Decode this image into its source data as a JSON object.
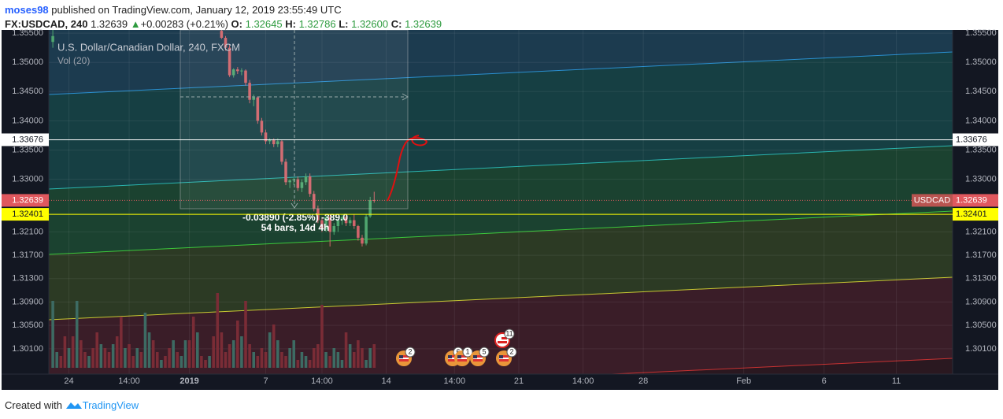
{
  "header": {
    "author": "moses98",
    "published": "published on TradingView.com, January 12, 2019 23:55:49 UTC",
    "symbol": "FX:USDCAD, 240",
    "last": "1.32639",
    "arrow": "▲",
    "change": "+0.00283 (+0.21%)",
    "o_label": "O:",
    "o": "1.32645",
    "h_label": "H:",
    "h": "1.32786",
    "l_label": "L:",
    "l": "1.32600",
    "c_label": "C:",
    "c": "1.32639"
  },
  "chart_data": {
    "type": "candlestick",
    "title": "U.S. Dollar/Canadian Dollar, 240, FXCM",
    "subtitle": "Vol (20)",
    "x": [
      1,
      2,
      3,
      4,
      5,
      6,
      7,
      8,
      9,
      10,
      11,
      12,
      13,
      14,
      15,
      16,
      17,
      18,
      19,
      20,
      21,
      22,
      23,
      24,
      25,
      26,
      27,
      28,
      29,
      30,
      31,
      32,
      33,
      34,
      35,
      36,
      37,
      38,
      39,
      40,
      41,
      42,
      43,
      44,
      45,
      46,
      47,
      48,
      49,
      50,
      51,
      52,
      53,
      54,
      55,
      56,
      57,
      58,
      59,
      60,
      61,
      62,
      63,
      64,
      65,
      66,
      67,
      68,
      69,
      70,
      71,
      72,
      73,
      74,
      75,
      76,
      77,
      78,
      79,
      80,
      81
    ],
    "open": [
      1.3535,
      null,
      null,
      null,
      null,
      null,
      null,
      null,
      null,
      null,
      null,
      null,
      null,
      null,
      null,
      null,
      null,
      null,
      null,
      null,
      null,
      null,
      null,
      null,
      null,
      null,
      null,
      null,
      null,
      null,
      null,
      null,
      null,
      null,
      null,
      null,
      null,
      null,
      null,
      null,
      null,
      null,
      1.3554,
      1.3542,
      1.3525,
      1.3478,
      1.3488,
      1.3485,
      1.3486,
      1.3465,
      1.3436,
      1.344,
      1.34,
      1.338,
      1.3365,
      1.3368,
      1.336,
      1.3365,
      1.333,
      1.3295,
      1.3298,
      1.33,
      1.3285,
      1.3295,
      1.3305,
      1.3275,
      1.325,
      1.323,
      1.3215,
      1.3235,
      1.321,
      1.322,
      1.323,
      1.3235,
      1.3225,
      1.323,
      1.322,
      1.32,
      1.319,
      1.32365,
      1.32645
    ],
    "high": [
      1.3556,
      null,
      null,
      null,
      null,
      null,
      null,
      null,
      null,
      null,
      null,
      null,
      null,
      null,
      null,
      null,
      null,
      null,
      null,
      null,
      null,
      null,
      null,
      null,
      null,
      null,
      null,
      null,
      null,
      null,
      null,
      null,
      null,
      null,
      null,
      null,
      null,
      null,
      null,
      null,
      null,
      null,
      1.3556,
      1.3545,
      1.353,
      1.349,
      1.3492,
      1.349,
      1.3488,
      1.347,
      1.3445,
      1.3442,
      1.3405,
      1.3385,
      1.337,
      1.337,
      1.337,
      1.3368,
      1.3335,
      1.33,
      1.3302,
      1.3305,
      1.33,
      1.331,
      1.331,
      1.328,
      1.3255,
      1.3235,
      1.324,
      1.324,
      1.3225,
      1.3232,
      1.324,
      1.3238,
      1.3235,
      1.324,
      1.3222,
      1.3205,
      1.324,
      1.327,
      1.32786
    ],
    "low": [
      1.3525,
      null,
      null,
      null,
      null,
      null,
      null,
      null,
      null,
      null,
      null,
      null,
      null,
      null,
      null,
      null,
      null,
      null,
      null,
      null,
      null,
      null,
      null,
      null,
      null,
      null,
      null,
      null,
      null,
      null,
      null,
      null,
      null,
      null,
      null,
      null,
      null,
      null,
      null,
      null,
      null,
      null,
      1.354,
      1.352,
      1.3475,
      1.3474,
      1.348,
      1.3478,
      1.346,
      1.343,
      1.3425,
      1.3395,
      1.3375,
      1.336,
      1.336,
      1.3355,
      1.3355,
      1.3325,
      1.329,
      1.3285,
      1.329,
      1.328,
      1.3278,
      1.329,
      1.327,
      1.3245,
      1.3225,
      1.321,
      1.321,
      1.3185,
      1.3205,
      1.321,
      1.3222,
      1.322,
      1.322,
      1.3215,
      1.3195,
      1.3185,
      1.3187,
      1.3234,
      1.326
    ],
    "close": [
      1.3545,
      null,
      null,
      null,
      null,
      null,
      null,
      null,
      null,
      null,
      null,
      null,
      null,
      null,
      null,
      null,
      null,
      null,
      null,
      null,
      null,
      null,
      null,
      null,
      null,
      null,
      null,
      null,
      null,
      null,
      null,
      null,
      null,
      null,
      null,
      null,
      null,
      null,
      null,
      null,
      null,
      null,
      1.3542,
      1.3525,
      1.3478,
      1.3488,
      1.3485,
      1.3486,
      1.3465,
      1.3436,
      1.344,
      1.34,
      1.338,
      1.3365,
      1.3368,
      1.336,
      1.3365,
      1.333,
      1.3295,
      1.3298,
      1.33,
      1.3285,
      1.3295,
      1.3305,
      1.3275,
      1.325,
      1.323,
      1.3215,
      1.3235,
      1.321,
      1.322,
      1.323,
      1.3235,
      1.3225,
      1.323,
      1.322,
      1.32,
      1.319,
      1.3236,
      1.32645,
      1.32639
    ],
    "volume": [
      85,
      20,
      15,
      40,
      25,
      40,
      85,
      35,
      20,
      15,
      25,
      45,
      30,
      25,
      20,
      30,
      40,
      65,
      25,
      30,
      15,
      25,
      20,
      70,
      45,
      35,
      20,
      10,
      15,
      25,
      35,
      20,
      15,
      35,
      35,
      65,
      45,
      15,
      10,
      15,
      40,
      95,
      45,
      20,
      30,
      35,
      60,
      40,
      85,
      30,
      20,
      15,
      25,
      20,
      45,
      55,
      35,
      20,
      15,
      25,
      35,
      10,
      20,
      15,
      10,
      25,
      30,
      80,
      20,
      15,
      25,
      20,
      10,
      45,
      30,
      20,
      35,
      25,
      10,
      25,
      30
    ],
    "volume_up": [
      true,
      true,
      false,
      false,
      true,
      false,
      true,
      false,
      false,
      true,
      false,
      false,
      true,
      false,
      false,
      true,
      false,
      false,
      true,
      false,
      false,
      true,
      false,
      true,
      true,
      false,
      false,
      true,
      false,
      false,
      true,
      false,
      true,
      true,
      false,
      false,
      true,
      false,
      false,
      true,
      false,
      false,
      false,
      false,
      false,
      true,
      false,
      true,
      false,
      false,
      true,
      false,
      false,
      false,
      true,
      false,
      true,
      false,
      false,
      true,
      true,
      false,
      true,
      true,
      false,
      false,
      false,
      false,
      true,
      false,
      true,
      true,
      true,
      false,
      true,
      false,
      false,
      false,
      true,
      true,
      false
    ],
    "up_color": "#4fa66f",
    "down_color": "#d0646b",
    "volume_up_color": "#3d6b63",
    "volume_down_color": "#7a2c36",
    "volume_ylim": [
      0,
      100
    ],
    "xlim": [
      0,
      225
    ],
    "xticks": [
      {
        "value": 5,
        "label": "24"
      },
      {
        "value": 20,
        "label": "14:00"
      },
      {
        "value": 35,
        "label": "2019"
      },
      {
        "value": 54,
        "label": "7"
      },
      {
        "value": 68,
        "label": "14:00"
      },
      {
        "value": 84,
        "label": "14"
      },
      {
        "value": 101,
        "label": "14:00"
      },
      {
        "value": 117,
        "label": "21"
      },
      {
        "value": 133,
        "label": "14:00"
      },
      {
        "value": 148,
        "label": "28"
      },
      {
        "value": 173,
        "label": "Feb"
      },
      {
        "value": 193,
        "label": "6"
      },
      {
        "value": 211,
        "label": "11"
      }
    ],
    "ylim": [
      1.29667,
      1.35555
    ],
    "yticks": [
      {
        "value": 1.355,
        "label": "1.35500"
      },
      {
        "value": 1.35,
        "label": "1.35000"
      },
      {
        "value": 1.345,
        "label": "1.34500"
      },
      {
        "value": 1.34,
        "label": "1.34000"
      },
      {
        "value": 1.335,
        "label": "1.33500"
      },
      {
        "value": 1.33,
        "label": "1.33000"
      },
      {
        "value": 1.321,
        "label": "1.32100"
      },
      {
        "value": 1.317,
        "label": "1.31700"
      },
      {
        "value": 1.313,
        "label": "1.31300"
      },
      {
        "value": 1.309,
        "label": "1.30900"
      },
      {
        "value": 1.305,
        "label": "1.30500"
      },
      {
        "value": 1.301,
        "label": "1.30100"
      }
    ],
    "grid": true,
    "levels": [
      {
        "value": 1.33676,
        "color": "#ffffff",
        "text_color": "#131722"
      },
      {
        "value": 1.32401,
        "color": "#ffff00",
        "text_color": "#131722"
      }
    ],
    "last_price": {
      "value": 1.32639,
      "name": "USDCAD",
      "color": "#e0585e"
    },
    "measure": {
      "change": "-0.03890 (-2.85%) -389.0",
      "span": "54 bars, 14d 4h"
    },
    "events": [
      "2",
      "6",
      "1",
      "5",
      "11",
      "2"
    ]
  },
  "footer": {
    "created": "Created with",
    "brand": "TradingView"
  }
}
